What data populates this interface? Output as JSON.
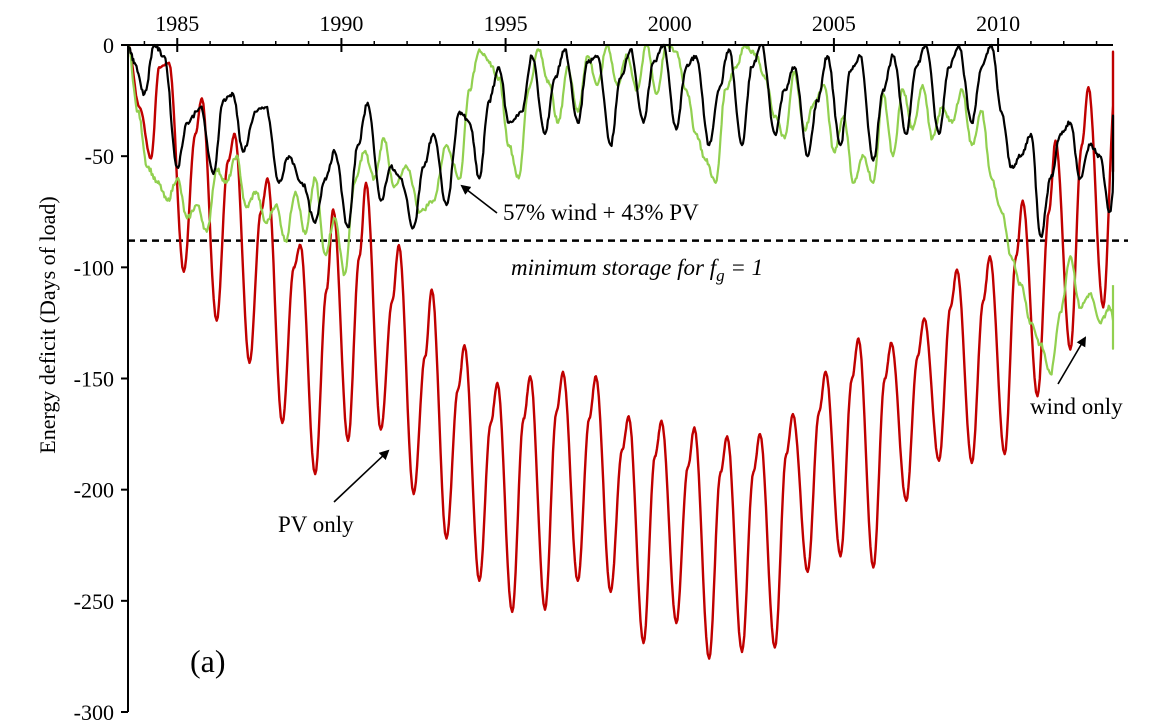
{
  "chart_data": {
    "type": "line",
    "title": "",
    "xlabel": "",
    "ylabel": "Energy deficit (Days of load)",
    "panel_label": "(a)",
    "xlim": [
      1983.5,
      2013.5
    ],
    "ylim": [
      -300,
      0
    ],
    "x_ticks": [
      1985,
      1990,
      1995,
      2000,
      2005,
      2010
    ],
    "x_tick_labels": [
      "1985",
      "1990",
      "1995",
      "2000",
      "2005",
      "2010"
    ],
    "y_ticks": [
      0,
      -50,
      -100,
      -150,
      -200,
      -250,
      -300
    ],
    "y_tick_labels": [
      "0",
      "-50",
      "-100",
      "-150",
      "-200",
      "-250",
      "-300"
    ],
    "reference_line": {
      "y": -88,
      "style": "dashed",
      "label_pre": "minimum storage for f",
      "label_sub": "g",
      "label_post": " = 1"
    },
    "annotations": [
      {
        "text": "57% wind + 43% PV",
        "series": "57% wind + 43% PV"
      },
      {
        "text": "PV only",
        "series": "PV only"
      },
      {
        "text": "wind only",
        "series": "wind only"
      }
    ],
    "series": [
      {
        "name": "PV only",
        "color": "#c00000",
        "points": [
          [
            1983.5,
            0
          ],
          [
            1983.85,
            -28
          ],
          [
            1984.2,
            -51
          ],
          [
            1984.45,
            -10
          ],
          [
            1984.75,
            -8
          ],
          [
            1985.2,
            -102
          ],
          [
            1985.55,
            -40
          ],
          [
            1985.75,
            -24
          ],
          [
            1986.2,
            -124
          ],
          [
            1986.55,
            -52
          ],
          [
            1986.75,
            -40
          ],
          [
            1987.2,
            -143
          ],
          [
            1987.55,
            -75
          ],
          [
            1987.75,
            -60
          ],
          [
            1988.2,
            -170
          ],
          [
            1988.55,
            -100
          ],
          [
            1988.75,
            -90
          ],
          [
            1989.2,
            -193
          ],
          [
            1989.55,
            -110
          ],
          [
            1989.75,
            -74
          ],
          [
            1990.2,
            -178
          ],
          [
            1990.55,
            -95
          ],
          [
            1990.75,
            -62
          ],
          [
            1991.2,
            -173
          ],
          [
            1991.55,
            -115
          ],
          [
            1991.75,
            -90
          ],
          [
            1992.2,
            -202
          ],
          [
            1992.55,
            -140
          ],
          [
            1992.75,
            -110
          ],
          [
            1993.2,
            -222
          ],
          [
            1993.55,
            -155
          ],
          [
            1993.75,
            -135
          ],
          [
            1994.2,
            -241
          ],
          [
            1994.55,
            -170
          ],
          [
            1994.75,
            -152
          ],
          [
            1995.2,
            -255
          ],
          [
            1995.55,
            -168
          ],
          [
            1995.75,
            -149
          ],
          [
            1996.2,
            -254
          ],
          [
            1996.55,
            -165
          ],
          [
            1996.75,
            -147
          ],
          [
            1997.2,
            -241
          ],
          [
            1997.55,
            -168
          ],
          [
            1997.75,
            -149
          ],
          [
            1998.2,
            -246
          ],
          [
            1998.55,
            -182
          ],
          [
            1998.75,
            -167
          ],
          [
            1999.2,
            -269
          ],
          [
            1999.55,
            -185
          ],
          [
            1999.75,
            -169
          ],
          [
            2000.2,
            -260
          ],
          [
            2000.55,
            -190
          ],
          [
            2000.75,
            -172
          ],
          [
            2001.2,
            -276
          ],
          [
            2001.55,
            -192
          ],
          [
            2001.75,
            -176
          ],
          [
            2002.2,
            -273
          ],
          [
            2002.55,
            -192
          ],
          [
            2002.75,
            -175
          ],
          [
            2003.2,
            -271
          ],
          [
            2003.55,
            -184
          ],
          [
            2003.75,
            -166
          ],
          [
            2004.2,
            -237
          ],
          [
            2004.55,
            -165
          ],
          [
            2004.75,
            -147
          ],
          [
            2005.2,
            -230
          ],
          [
            2005.55,
            -150
          ],
          [
            2005.75,
            -132
          ],
          [
            2006.2,
            -235
          ],
          [
            2006.55,
            -150
          ],
          [
            2006.75,
            -134
          ],
          [
            2007.2,
            -205
          ],
          [
            2007.55,
            -140
          ],
          [
            2007.75,
            -123
          ],
          [
            2008.2,
            -187
          ],
          [
            2008.55,
            -118
          ],
          [
            2008.75,
            -101
          ],
          [
            2009.2,
            -188
          ],
          [
            2009.55,
            -115
          ],
          [
            2009.75,
            -95
          ],
          [
            2010.2,
            -184
          ],
          [
            2010.55,
            -95
          ],
          [
            2010.75,
            -70
          ],
          [
            2011.2,
            -158
          ],
          [
            2011.55,
            -75
          ],
          [
            2011.75,
            -43
          ],
          [
            2012.2,
            -137
          ],
          [
            2012.55,
            -45
          ],
          [
            2012.75,
            -19
          ],
          [
            2013.2,
            -118
          ],
          [
            2013.55,
            -25
          ],
          [
            2013.75,
            -3
          ],
          [
            2014.0,
            -57
          ]
        ]
      },
      {
        "name": "wind only",
        "color": "#92d050",
        "points": [
          [
            1983.5,
            0
          ],
          [
            1983.8,
            -30
          ],
          [
            1984.1,
            -55
          ],
          [
            1984.4,
            -62
          ],
          [
            1984.7,
            -70
          ],
          [
            1985.0,
            -60
          ],
          [
            1985.3,
            -78
          ],
          [
            1985.6,
            -72
          ],
          [
            1985.9,
            -84
          ],
          [
            1986.2,
            -56
          ],
          [
            1986.5,
            -62
          ],
          [
            1986.8,
            -50
          ],
          [
            1987.1,
            -73
          ],
          [
            1987.4,
            -66
          ],
          [
            1987.7,
            -80
          ],
          [
            1988.0,
            -72
          ],
          [
            1988.3,
            -88
          ],
          [
            1988.6,
            -66
          ],
          [
            1988.9,
            -85
          ],
          [
            1989.2,
            -60
          ],
          [
            1989.5,
            -94
          ],
          [
            1989.8,
            -78
          ],
          [
            1990.1,
            -103
          ],
          [
            1990.4,
            -62
          ],
          [
            1990.7,
            -48
          ],
          [
            1991.0,
            -60
          ],
          [
            1991.3,
            -42
          ],
          [
            1991.6,
            -64
          ],
          [
            1992.0,
            -55
          ],
          [
            1992.4,
            -75
          ],
          [
            1992.8,
            -70
          ],
          [
            1993.2,
            -45
          ],
          [
            1993.6,
            -60
          ],
          [
            1993.9,
            -20
          ],
          [
            1994.2,
            -2
          ],
          [
            1994.5,
            -8
          ],
          [
            1994.8,
            -15
          ],
          [
            1995.1,
            -45
          ],
          [
            1995.4,
            -60
          ],
          [
            1995.7,
            -20
          ],
          [
            1996.0,
            -2
          ],
          [
            1996.3,
            -16
          ],
          [
            1996.6,
            -35
          ],
          [
            1996.9,
            -10
          ],
          [
            1997.2,
            -30
          ],
          [
            1997.5,
            -5
          ],
          [
            1997.8,
            -18
          ],
          [
            1998.1,
            0
          ],
          [
            1998.4,
            -18
          ],
          [
            1998.7,
            -5
          ],
          [
            1999.0,
            -20
          ],
          [
            1999.3,
            0
          ],
          [
            1999.6,
            -22
          ],
          [
            1999.9,
            0
          ],
          [
            2000.2,
            -3
          ],
          [
            2000.5,
            -20
          ],
          [
            2000.8,
            -40
          ],
          [
            2001.1,
            -52
          ],
          [
            2001.4,
            -62
          ],
          [
            2001.7,
            -20
          ],
          [
            2002.0,
            -10
          ],
          [
            2002.3,
            0
          ],
          [
            2002.6,
            -4
          ],
          [
            2002.9,
            -15
          ],
          [
            2003.2,
            -32
          ],
          [
            2003.5,
            -42
          ],
          [
            2003.8,
            -12
          ],
          [
            2004.1,
            -38
          ],
          [
            2004.4,
            -26
          ],
          [
            2004.7,
            -18
          ],
          [
            2005.0,
            -48
          ],
          [
            2005.3,
            -32
          ],
          [
            2005.6,
            -62
          ],
          [
            2005.9,
            -50
          ],
          [
            2006.2,
            -62
          ],
          [
            2006.5,
            -22
          ],
          [
            2006.8,
            -50
          ],
          [
            2007.1,
            -20
          ],
          [
            2007.4,
            -38
          ],
          [
            2007.7,
            -18
          ],
          [
            2008.0,
            -42
          ],
          [
            2008.3,
            -28
          ],
          [
            2008.6,
            -35
          ],
          [
            2008.9,
            -20
          ],
          [
            2009.2,
            -45
          ],
          [
            2009.5,
            -30
          ],
          [
            2009.8,
            -60
          ],
          [
            2010.1,
            -75
          ],
          [
            2010.4,
            -95
          ],
          [
            2010.7,
            -108
          ],
          [
            2011.0,
            -125
          ],
          [
            2011.3,
            -135
          ],
          [
            2011.6,
            -148
          ],
          [
            2011.9,
            -120
          ],
          [
            2012.2,
            -95
          ],
          [
            2012.5,
            -118
          ],
          [
            2012.8,
            -112
          ],
          [
            2013.1,
            -125
          ],
          [
            2013.4,
            -118
          ],
          [
            2013.6,
            -130
          ],
          [
            2013.8,
            -136
          ],
          [
            2014.0,
            -108
          ]
        ]
      },
      {
        "name": "57% wind + 43% PV",
        "color": "#000000",
        "points": [
          [
            1983.5,
            0
          ],
          [
            1983.7,
            -8
          ],
          [
            1984.0,
            -22
          ],
          [
            1984.3,
            0
          ],
          [
            1984.6,
            -5
          ],
          [
            1985.0,
            -55
          ],
          [
            1985.3,
            -35
          ],
          [
            1985.7,
            -28
          ],
          [
            1986.1,
            -58
          ],
          [
            1986.4,
            -25
          ],
          [
            1986.7,
            -22
          ],
          [
            1987.0,
            -48
          ],
          [
            1987.4,
            -30
          ],
          [
            1987.7,
            -28
          ],
          [
            1988.1,
            -62
          ],
          [
            1988.4,
            -50
          ],
          [
            1988.8,
            -62
          ],
          [
            1989.2,
            -80
          ],
          [
            1989.5,
            -60
          ],
          [
            1989.8,
            -48
          ],
          [
            1990.2,
            -82
          ],
          [
            1990.5,
            -45
          ],
          [
            1990.8,
            -26
          ],
          [
            1991.2,
            -70
          ],
          [
            1991.5,
            -55
          ],
          [
            1991.8,
            -60
          ],
          [
            1992.2,
            -82
          ],
          [
            1992.5,
            -55
          ],
          [
            1992.8,
            -40
          ],
          [
            1993.2,
            -72
          ],
          [
            1993.6,
            -30
          ],
          [
            1993.9,
            -35
          ],
          [
            1994.2,
            -60
          ],
          [
            1994.5,
            -25
          ],
          [
            1994.8,
            -10
          ],
          [
            1995.1,
            -35
          ],
          [
            1995.5,
            -30
          ],
          [
            1995.8,
            -5
          ],
          [
            1996.2,
            -40
          ],
          [
            1996.5,
            -15
          ],
          [
            1996.8,
            -2
          ],
          [
            1997.2,
            -35
          ],
          [
            1997.5,
            -8
          ],
          [
            1997.8,
            -5
          ],
          [
            1998.2,
            -45
          ],
          [
            1998.5,
            -15
          ],
          [
            1998.8,
            -2
          ],
          [
            1999.2,
            -35
          ],
          [
            1999.5,
            -8
          ],
          [
            1999.8,
            0
          ],
          [
            2000.2,
            -38
          ],
          [
            2000.5,
            -10
          ],
          [
            2000.8,
            -5
          ],
          [
            2001.2,
            -45
          ],
          [
            2001.5,
            -20
          ],
          [
            2001.8,
            -2
          ],
          [
            2002.2,
            -45
          ],
          [
            2002.5,
            -10
          ],
          [
            2002.8,
            0
          ],
          [
            2003.2,
            -40
          ],
          [
            2003.5,
            -20
          ],
          [
            2003.8,
            -10
          ],
          [
            2004.2,
            -50
          ],
          [
            2004.5,
            -25
          ],
          [
            2004.8,
            -5
          ],
          [
            2005.2,
            -45
          ],
          [
            2005.5,
            -12
          ],
          [
            2005.8,
            -5
          ],
          [
            2006.2,
            -52
          ],
          [
            2006.5,
            -20
          ],
          [
            2006.8,
            -5
          ],
          [
            2007.2,
            -40
          ],
          [
            2007.5,
            -10
          ],
          [
            2007.8,
            0
          ],
          [
            2008.2,
            -40
          ],
          [
            2008.5,
            -10
          ],
          [
            2008.8,
            0
          ],
          [
            2009.2,
            -35
          ],
          [
            2009.5,
            -10
          ],
          [
            2009.8,
            0
          ],
          [
            2010.1,
            -30
          ],
          [
            2010.4,
            -55
          ],
          [
            2010.7,
            -50
          ],
          [
            2011.0,
            -40
          ],
          [
            2011.3,
            -86
          ],
          [
            2011.6,
            -60
          ],
          [
            2011.9,
            -40
          ],
          [
            2012.2,
            -35
          ],
          [
            2012.5,
            -60
          ],
          [
            2012.8,
            -45
          ],
          [
            2013.1,
            -50
          ],
          [
            2013.4,
            -75
          ],
          [
            2013.7,
            -32
          ],
          [
            2014.0,
            -38
          ]
        ]
      }
    ]
  }
}
